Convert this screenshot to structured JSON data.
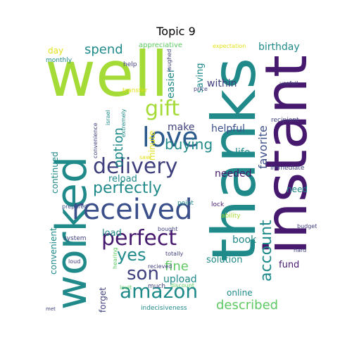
{
  "title": "Topic 9",
  "palette": {
    "teal": "#1f8a89",
    "lightgreen": "#a5db36",
    "purple": "#46196e",
    "indigo": "#3b4f8a",
    "navy": "#3f3f7d",
    "green": "#5ec962",
    "yellow": "#e4e11a",
    "darkblue": "#2c5a8c"
  },
  "words": [
    {
      "text": "thanks"
    },
    {
      "text": "instant"
    },
    {
      "text": "well"
    },
    {
      "text": "worked"
    },
    {
      "text": "received"
    },
    {
      "text": "love"
    },
    {
      "text": "delivery"
    },
    {
      "text": "gift"
    },
    {
      "text": "perfectly"
    },
    {
      "text": "amazon"
    },
    {
      "text": "perfect"
    },
    {
      "text": "son"
    },
    {
      "text": "yes"
    },
    {
      "text": "account"
    },
    {
      "text": "favorite"
    },
    {
      "text": "buying"
    },
    {
      "text": "spend"
    },
    {
      "text": "option"
    },
    {
      "text": "described"
    },
    {
      "text": "fine"
    },
    {
      "text": "birthday"
    },
    {
      "text": "easier"
    },
    {
      "text": "saving"
    },
    {
      "text": "make"
    },
    {
      "text": "within"
    },
    {
      "text": "helpful"
    },
    {
      "text": "needed"
    },
    {
      "text": "life"
    },
    {
      "text": "upload"
    },
    {
      "text": "book"
    },
    {
      "text": "solution"
    },
    {
      "text": "load"
    },
    {
      "text": "reload"
    },
    {
      "text": "fund"
    },
    {
      "text": "continued"
    },
    {
      "text": "online"
    },
    {
      "text": "convenient"
    },
    {
      "text": "forget"
    },
    {
      "text": "need"
    },
    {
      "text": "minute"
    },
    {
      "text": "day"
    },
    {
      "text": "appreciative"
    },
    {
      "text": "expectation"
    },
    {
      "text": "monthly"
    },
    {
      "text": "help"
    },
    {
      "text": "laughed"
    },
    {
      "text": "usefull"
    },
    {
      "text": "transfer"
    },
    {
      "text": "price"
    },
    {
      "text": "recipient"
    },
    {
      "text": "extremely"
    },
    {
      "text": "convenience"
    },
    {
      "text": "israel"
    },
    {
      "text": "saw"
    },
    {
      "text": "immediate"
    },
    {
      "text": "prepared"
    },
    {
      "text": "point"
    },
    {
      "text": "lock"
    },
    {
      "text": "ability"
    },
    {
      "text": "system"
    },
    {
      "text": "bought"
    },
    {
      "text": "budget"
    },
    {
      "text": "totally"
    },
    {
      "text": "hearing"
    },
    {
      "text": "loud"
    },
    {
      "text": "hard"
    },
    {
      "text": "recieved"
    },
    {
      "text": "lovit"
    },
    {
      "text": "much"
    },
    {
      "text": "discount"
    },
    {
      "text": "indecisiveness"
    },
    {
      "text": "met"
    }
  ]
}
